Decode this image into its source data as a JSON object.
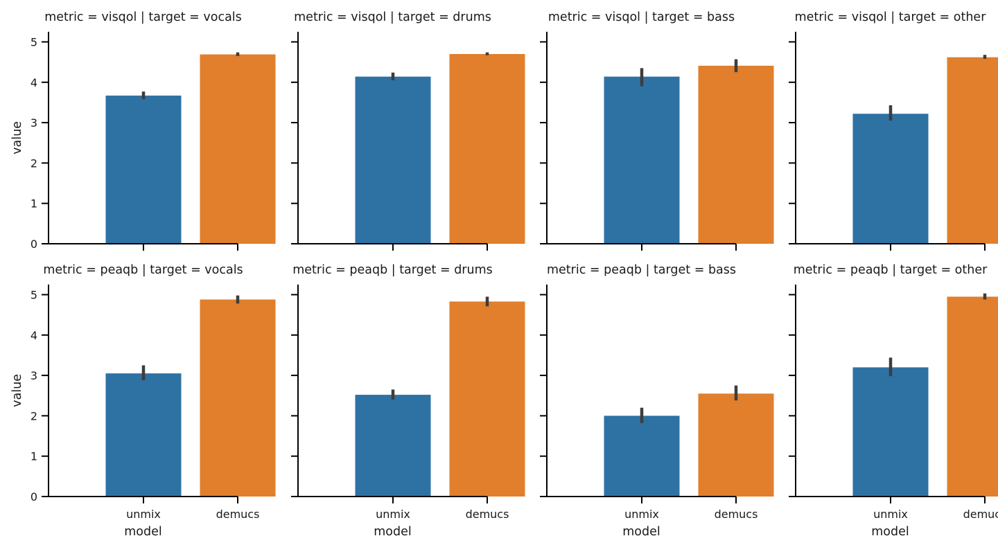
{
  "chart_data": {
    "type": "bar",
    "layout": "facet-grid",
    "rows": [
      "visqol",
      "peaqb"
    ],
    "cols": [
      "vocals",
      "drums",
      "bass",
      "other"
    ],
    "categories": [
      "unmix",
      "demucs"
    ],
    "series_colors": {
      "unmix": "#2e72a4",
      "demucs": "#e17f2c"
    },
    "error_bar_color": "#3d3d3d",
    "xlabel": "model",
    "ylabel": "value",
    "ylim": [
      0,
      5.25
    ],
    "yticks": [
      0,
      1,
      2,
      3,
      4,
      5
    ],
    "ytick_labels": [
      "0",
      "1",
      "2",
      "3",
      "4",
      "5"
    ],
    "shared_y": true,
    "grid": false,
    "panels": [
      {
        "title": "metric = visqol | target = vocals",
        "values": [
          3.67,
          4.69
        ],
        "errors": [
          [
            3.58,
            3.77
          ],
          [
            4.65,
            4.74
          ]
        ]
      },
      {
        "title": "metric = visqol | target = drums",
        "values": [
          4.14,
          4.7
        ],
        "errors": [
          [
            4.05,
            4.24
          ],
          [
            4.67,
            4.74
          ]
        ]
      },
      {
        "title": "metric = visqol | target = bass",
        "values": [
          4.14,
          4.41
        ],
        "errors": [
          [
            3.9,
            4.35
          ],
          [
            4.25,
            4.57
          ]
        ]
      },
      {
        "title": "metric = visqol | target = other",
        "values": [
          3.22,
          4.62
        ],
        "errors": [
          [
            3.05,
            3.43
          ],
          [
            4.58,
            4.68
          ]
        ]
      },
      {
        "title": "metric = peaqb | target = vocals",
        "values": [
          3.05,
          4.88
        ],
        "errors": [
          [
            2.88,
            3.25
          ],
          [
            4.78,
            4.98
          ]
        ]
      },
      {
        "title": "metric = peaqb | target = drums",
        "values": [
          2.52,
          4.83
        ],
        "errors": [
          [
            2.4,
            2.65
          ],
          [
            4.71,
            4.95
          ]
        ]
      },
      {
        "title": "metric = peaqb | target = bass",
        "values": [
          2.0,
          2.55
        ],
        "errors": [
          [
            1.82,
            2.2
          ],
          [
            2.38,
            2.75
          ]
        ]
      },
      {
        "title": "metric = peaqb | target = other",
        "values": [
          3.2,
          4.95
        ],
        "errors": [
          [
            2.98,
            3.44
          ],
          [
            4.88,
            5.03
          ]
        ]
      }
    ]
  }
}
